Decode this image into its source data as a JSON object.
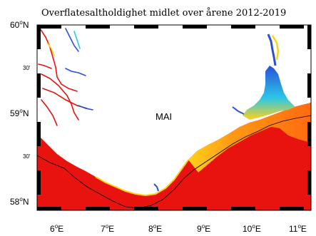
{
  "title": "Overflatesaltholdighet midlet over årene 2012-2019",
  "month": "MAI",
  "lat_labels": {
    "lat60": "60",
    "lat59": "59",
    "lat58": "58",
    "suffix": "N",
    "min30_upper": "30'",
    "min30_lower": "30'"
  },
  "lon_labels": {
    "lon6": "6",
    "lon7": "7",
    "lon8": "8",
    "lon9": "9",
    "lon10": "10",
    "lon11": "11",
    "suffix": "E"
  },
  "degree_symbol": "o",
  "colors": {
    "sea_high": "#e8130f",
    "sea_orange": "#ff7a10",
    "sea_yellow": "#ffd21a",
    "fjord_blue": "#2a4fd8",
    "fjord_cyan": "#2cc7e8",
    "land": "#ffffff",
    "frame": "#000000"
  }
}
